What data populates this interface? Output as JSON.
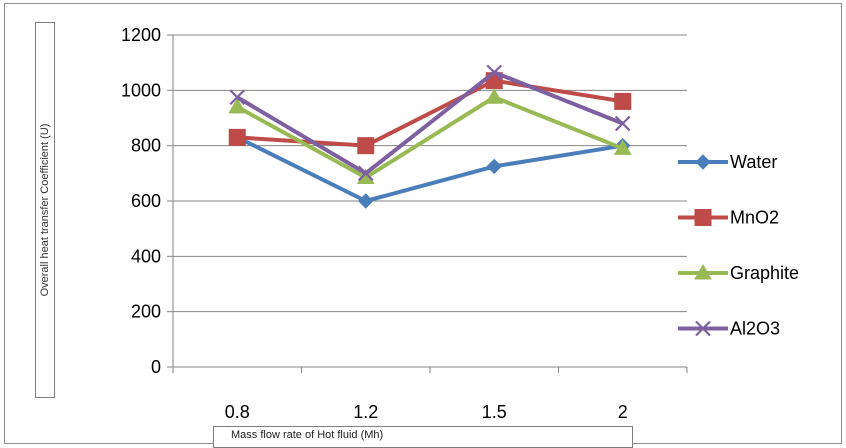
{
  "chart_data": {
    "type": "line",
    "title": "",
    "xlabel": "Mass flow rate of Hot fluid (Mh)",
    "ylabel": "Overall heat transfer Coefficient (U)",
    "categories": [
      "0.8",
      "1.2",
      "1.5",
      "2"
    ],
    "yticks": [
      "0",
      "200",
      "400",
      "600",
      "800",
      "1000",
      "1200"
    ],
    "ylim": [
      0,
      1200
    ],
    "grid": true,
    "legend": "right",
    "series": [
      {
        "name": "Water",
        "values": [
          830,
          600,
          725,
          800
        ],
        "color": "#4a7ebb",
        "marker": "diamond"
      },
      {
        "name": "MnO2",
        "values": [
          830,
          800,
          1035,
          960
        ],
        "color": "#be4b48",
        "marker": "square"
      },
      {
        "name": "Graphite",
        "values": [
          940,
          685,
          975,
          790
        ],
        "color": "#98b954",
        "marker": "triangle"
      },
      {
        "name": "Al2O3",
        "values": [
          975,
          700,
          1065,
          880
        ],
        "color": "#7d60a0",
        "marker": "x"
      }
    ]
  }
}
